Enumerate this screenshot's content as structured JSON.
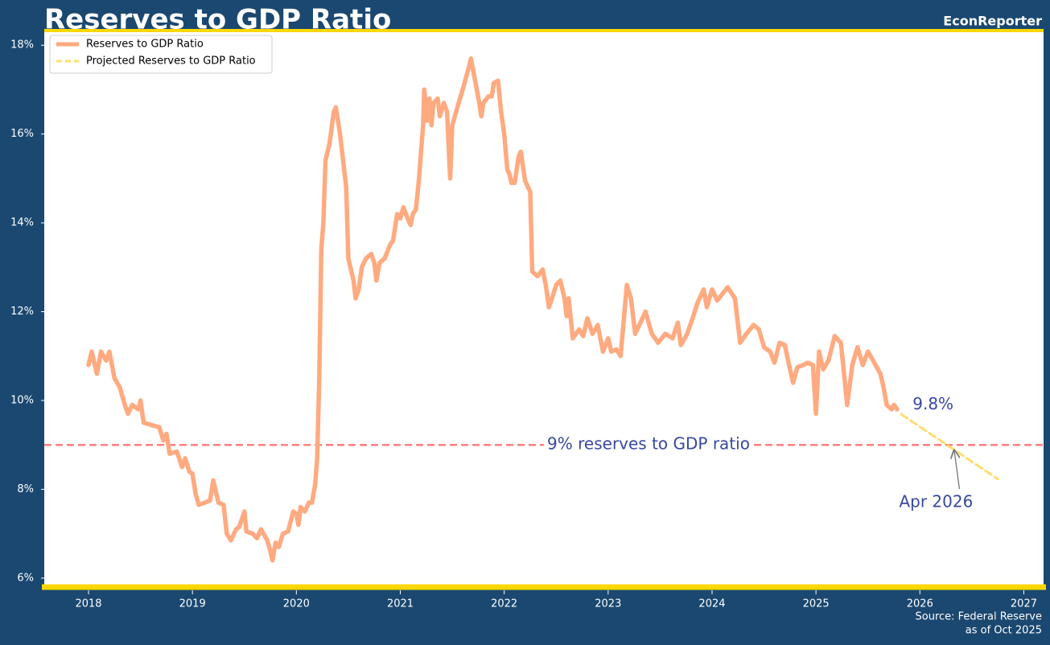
{
  "chart_data": {
    "type": "line",
    "title": "Reserves to GDP Ratio",
    "brand": "EconReporter",
    "source": [
      "Source: Federal Reserve",
      "as of Oct 2025"
    ],
    "xlim": [
      2017.574,
      2027.19
    ],
    "xticks": [
      2018,
      2019,
      2020,
      2021,
      2022,
      2023,
      2024,
      2025,
      2026,
      2027
    ],
    "ylim": [
      5.78,
      18.33
    ],
    "yticks": [
      {
        "value": 6,
        "label": "6%"
      },
      {
        "value": 8,
        "label": "8%"
      },
      {
        "value": 10,
        "label": "10%"
      },
      {
        "value": 12,
        "label": "12%"
      },
      {
        "value": 14,
        "label": "14%"
      },
      {
        "value": 16,
        "label": "16%"
      },
      {
        "value": 18,
        "label": "18%"
      }
    ],
    "grid": false,
    "legend": "upper left",
    "series": [
      {
        "name": "Reserves to GDP Ratio",
        "color": "#ffaa80",
        "style": "solid",
        "x": [
          2018.0,
          2018.03,
          2018.08,
          2018.12,
          2018.17,
          2018.2,
          2018.25,
          2018.3,
          2018.35,
          2018.38,
          2018.42,
          2018.48,
          2018.5,
          2018.53,
          2018.6,
          2018.68,
          2018.72,
          2018.75,
          2018.78,
          2018.85,
          2018.9,
          2018.93,
          2018.97,
          2019.0,
          2019.03,
          2019.06,
          2019.12,
          2019.17,
          2019.2,
          2019.25,
          2019.3,
          2019.33,
          2019.37,
          2019.42,
          2019.45,
          2019.5,
          2019.52,
          2019.58,
          2019.62,
          2019.66,
          2019.72,
          2019.75,
          2019.77,
          2019.8,
          2019.83,
          2019.87,
          2019.92,
          2019.97,
          2020.0,
          2020.02,
          2020.04,
          2020.08,
          2020.12,
          2020.15,
          2020.18,
          2020.2,
          2020.22,
          2020.24,
          2020.26,
          2020.28,
          2020.32,
          2020.36,
          2020.38,
          2020.42,
          2020.48,
          2020.5,
          2020.55,
          2020.57,
          2020.6,
          2020.63,
          2020.67,
          2020.72,
          2020.75,
          2020.77,
          2020.8,
          2020.85,
          2020.9,
          2020.93,
          2020.97,
          2021.0,
          2021.03,
          2021.07,
          2021.1,
          2021.12,
          2021.15,
          2021.18,
          2021.2,
          2021.22,
          2021.23,
          2021.26,
          2021.28,
          2021.3,
          2021.32,
          2021.36,
          2021.38,
          2021.42,
          2021.45,
          2021.48,
          2021.5,
          2021.55,
          2021.6,
          2021.66,
          2021.68,
          2021.72,
          2021.76,
          2021.78,
          2021.8,
          2021.85,
          2021.88,
          2021.9,
          2021.94,
          2021.97,
          2022.0,
          2022.03,
          2022.05,
          2022.07,
          2022.1,
          2022.14,
          2022.16,
          2022.2,
          2022.25,
          2022.27,
          2022.32,
          2022.37,
          2022.4,
          2022.43,
          2022.46,
          2022.5,
          2022.54,
          2022.58,
          2022.6,
          2022.62,
          2022.66,
          2022.72,
          2022.76,
          2022.8,
          2022.85,
          2022.9,
          2022.95,
          2023.0,
          2023.03,
          2023.08,
          2023.12,
          2023.18,
          2023.22,
          2023.26,
          2023.3,
          2023.36,
          2023.42,
          2023.48,
          2023.55,
          2023.62,
          2023.67,
          2023.7,
          2023.76,
          2023.82,
          2023.86,
          2023.92,
          2023.95,
          2024.0,
          2024.05,
          2024.1,
          2024.15,
          2024.22,
          2024.27,
          2024.33,
          2024.4,
          2024.45,
          2024.5,
          2024.56,
          2024.6,
          2024.65,
          2024.7,
          2024.75,
          2024.78,
          2024.82,
          2024.88,
          2024.92,
          2024.97,
          2025.0,
          2025.03,
          2025.07,
          2025.12,
          2025.18,
          2025.24,
          2025.3,
          2025.35,
          2025.4,
          2025.45,
          2025.5,
          2025.55,
          2025.62,
          2025.65,
          2025.68,
          2025.73,
          2025.75,
          2025.78
        ],
        "values": [
          10.8,
          11.1,
          10.6,
          11.1,
          10.9,
          11.1,
          10.5,
          10.3,
          9.9,
          9.7,
          9.9,
          9.8,
          10.0,
          9.5,
          9.45,
          9.4,
          9.1,
          9.25,
          8.8,
          8.85,
          8.5,
          8.7,
          8.4,
          8.35,
          7.9,
          7.65,
          7.7,
          7.75,
          8.2,
          7.7,
          7.65,
          7.0,
          6.85,
          7.1,
          7.15,
          7.5,
          7.05,
          7.0,
          6.9,
          7.1,
          6.85,
          6.6,
          6.4,
          6.8,
          6.7,
          7.0,
          7.05,
          7.5,
          7.45,
          7.2,
          7.6,
          7.5,
          7.7,
          7.7,
          8.1,
          8.7,
          10.5,
          13.4,
          14.0,
          15.4,
          15.8,
          16.5,
          16.6,
          16.0,
          14.8,
          13.2,
          12.7,
          12.3,
          12.5,
          13.0,
          13.2,
          13.3,
          13.1,
          12.7,
          13.1,
          13.2,
          13.5,
          13.6,
          14.2,
          14.1,
          14.35,
          14.1,
          13.95,
          14.2,
          14.3,
          15.0,
          15.6,
          16.2,
          17.0,
          16.3,
          16.8,
          16.2,
          16.7,
          16.8,
          16.4,
          16.7,
          16.5,
          15.0,
          16.2,
          16.6,
          17.0,
          17.5,
          17.7,
          17.2,
          16.7,
          16.4,
          16.7,
          16.85,
          16.85,
          17.15,
          17.2,
          16.5,
          16.0,
          15.2,
          15.1,
          14.9,
          14.9,
          15.5,
          15.6,
          14.95,
          14.7,
          12.9,
          12.8,
          12.95,
          12.6,
          12.1,
          12.3,
          12.6,
          12.7,
          12.3,
          11.9,
          12.3,
          11.4,
          11.6,
          11.45,
          11.85,
          11.5,
          11.7,
          11.1,
          11.4,
          11.1,
          11.15,
          11.0,
          12.6,
          12.3,
          11.5,
          11.7,
          12.0,
          11.5,
          11.3,
          11.5,
          11.4,
          11.75,
          11.25,
          11.5,
          11.9,
          12.2,
          12.5,
          12.1,
          12.5,
          12.25,
          12.4,
          12.55,
          12.3,
          11.3,
          11.5,
          11.7,
          11.6,
          11.2,
          11.1,
          10.85,
          11.3,
          11.25,
          10.7,
          10.4,
          10.75,
          10.8,
          10.85,
          10.8,
          9.7,
          11.1,
          10.7,
          10.9,
          11.45,
          11.3,
          9.9,
          10.8,
          11.2,
          10.8,
          11.1,
          10.9,
          10.6,
          10.3,
          9.9,
          9.8,
          9.9,
          9.8
        ]
      },
      {
        "name": "Projected Reserves to GDP Ratio",
        "color": "#ffdd70",
        "style": "dashed",
        "x": [
          2025.82,
          2026.75
        ],
        "values": [
          9.69,
          8.23
        ]
      }
    ],
    "hline": {
      "value": 9,
      "label": "9% reserves to GDP ratio",
      "color": "#ff8080"
    },
    "annotations": [
      {
        "text": "9.8%",
        "x": 2025.93,
        "y": 9.9
      },
      {
        "text": "Apr 2026",
        "x": 2025.8,
        "y": 7.7,
        "arrow_x": 2026.33,
        "arrow_y": 8.88
      }
    ]
  }
}
